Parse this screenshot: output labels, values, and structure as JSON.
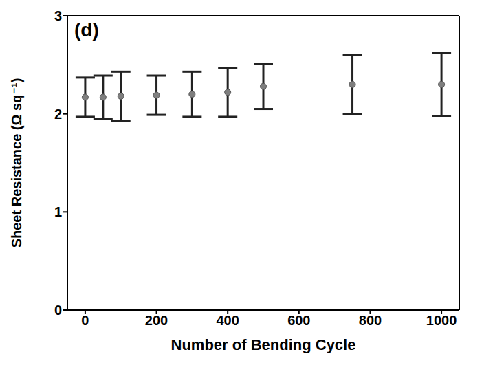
{
  "chart_data": {
    "type": "scatter",
    "annotation": "(d)",
    "x_label": "Number of Bending Cycle",
    "y_label": "Sheet Resistance (Ω sq⁻¹)",
    "x": [
      0,
      50,
      100,
      200,
      300,
      400,
      500,
      750,
      1000
    ],
    "values": [
      2.17,
      2.17,
      2.18,
      2.19,
      2.2,
      2.22,
      2.28,
      2.3,
      2.3
    ],
    "error": [
      0.2,
      0.22,
      0.25,
      0.2,
      0.23,
      0.25,
      0.23,
      0.3,
      0.32
    ],
    "color": "#7f7f7f",
    "marker": "circle",
    "xlim": [
      -50,
      1050
    ],
    "xticks": [
      0,
      200,
      400,
      600,
      800,
      1000
    ],
    "ylim": [
      0,
      3
    ],
    "yticks": [
      0,
      1,
      2,
      3
    ],
    "grid": false
  }
}
